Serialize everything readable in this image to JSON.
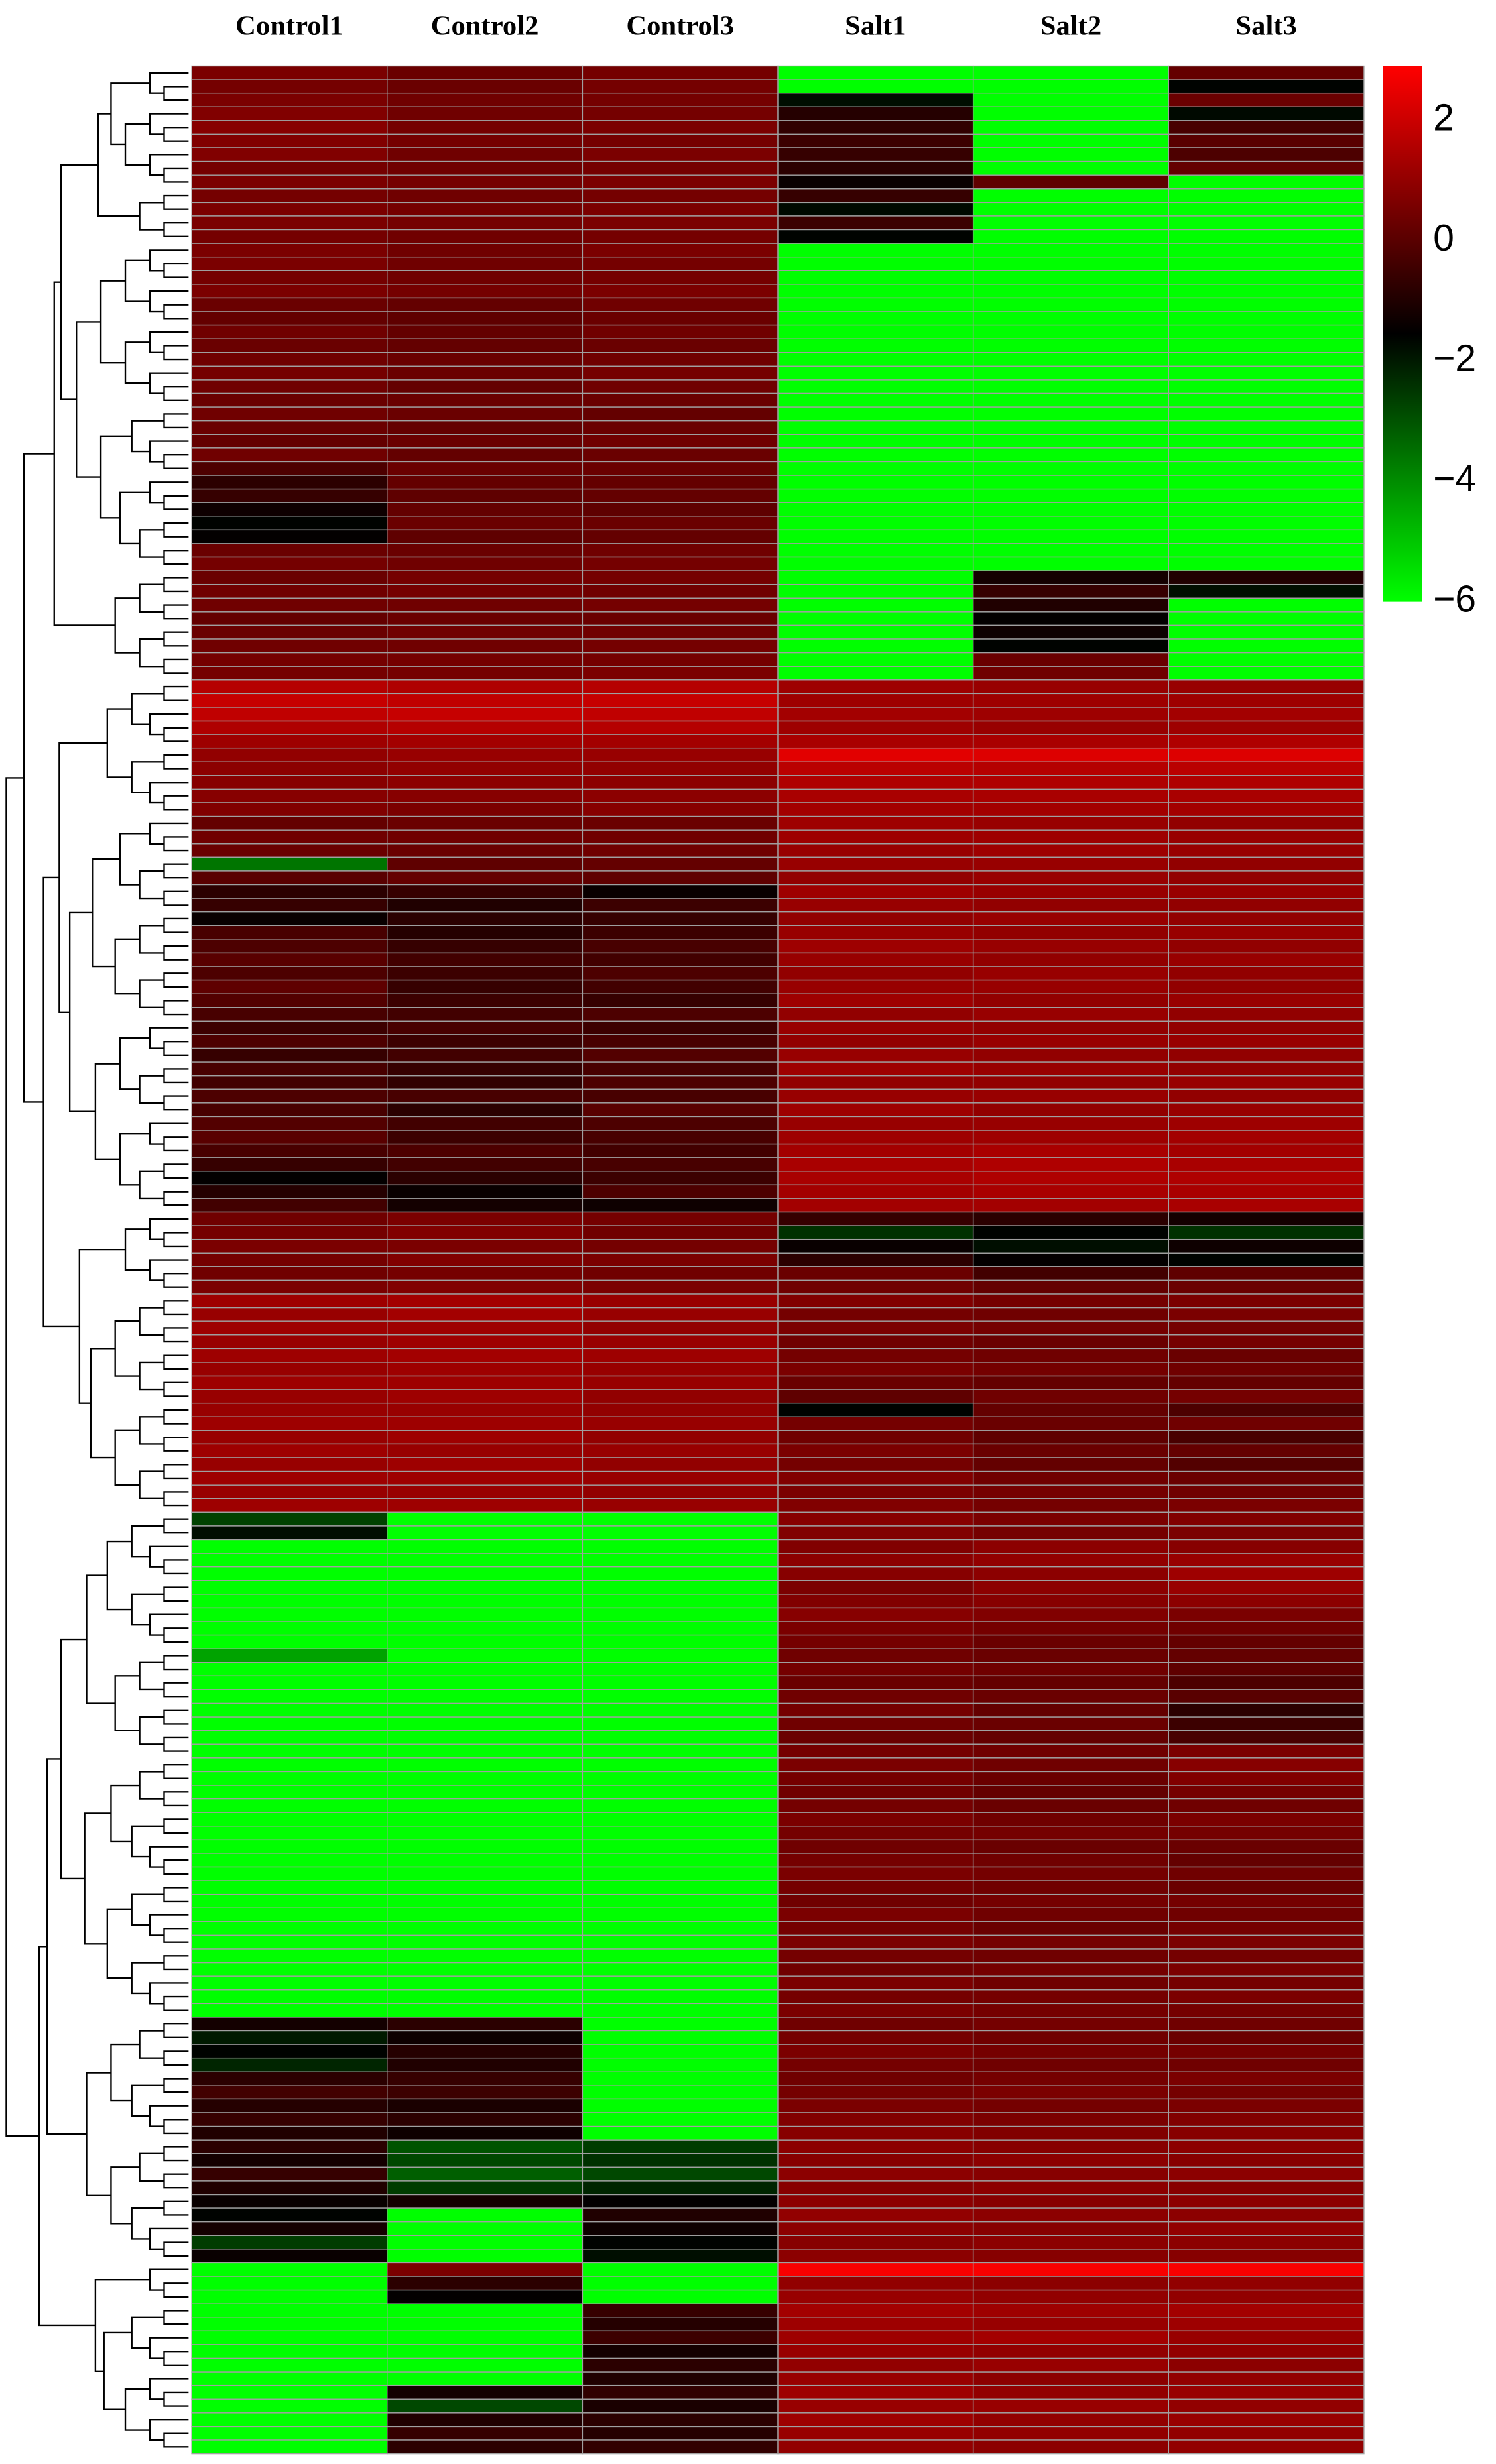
{
  "chart_data": {
    "type": "heatmap",
    "x": [
      "Control1",
      "Control2",
      "Control3",
      "Salt1",
      "Salt2",
      "Salt3"
    ],
    "clim": [
      -6,
      2.9
    ],
    "colors": [
      "#00ff00",
      "#000000",
      "#ff0000"
    ],
    "colorbar_ticks": [
      2,
      0,
      {
        "value": -2,
        "label": "−2"
      },
      {
        "value": -4,
        "label": "−4"
      },
      {
        "value": -6,
        "label": "−6"
      }
    ],
    "values": [
      [
        0.6,
        0.3,
        0.5,
        -6,
        -6,
        0.2
      ],
      [
        0.5,
        0.3,
        0.5,
        -6,
        -6,
        -1.6
      ],
      [
        0.6,
        0.4,
        0.5,
        -1.8,
        -6,
        0.3
      ],
      [
        0.7,
        0.4,
        0.5,
        -0.9,
        -6,
        -1.7
      ],
      [
        0.8,
        0.5,
        0.6,
        -0.7,
        -6,
        -0.3
      ],
      [
        0.7,
        0.5,
        0.5,
        -0.5,
        -6,
        0.0
      ],
      [
        0.7,
        0.4,
        0.6,
        -0.6,
        -6,
        -0.2
      ],
      [
        0.5,
        0.4,
        0.5,
        -0.8,
        -6,
        0.2
      ],
      [
        0.6,
        0.5,
        0.6,
        -1.4,
        0.1,
        -6
      ],
      [
        0.5,
        0.4,
        0.5,
        -0.6,
        -6,
        -6
      ],
      [
        0.6,
        0.5,
        0.6,
        -1.7,
        -6,
        -6
      ],
      [
        0.6,
        0.5,
        0.6,
        -0.5,
        -6,
        -6
      ],
      [
        0.5,
        0.4,
        0.5,
        -1.6,
        -6,
        -6
      ],
      [
        0.6,
        0.4,
        0.6,
        -6,
        -6,
        -6
      ],
      [
        0.6,
        0.4,
        0.5,
        -6,
        -6,
        -6
      ],
      [
        0.5,
        0.4,
        0.5,
        -6,
        -6,
        -6
      ],
      [
        0.6,
        0.5,
        0.6,
        -6,
        -6,
        -6
      ],
      [
        0.3,
        0.2,
        0.4,
        -6,
        -6,
        -6
      ],
      [
        0.2,
        0.1,
        0.3,
        -6,
        -6,
        -6
      ],
      [
        0.4,
        0.2,
        0.4,
        -6,
        -6,
        -6
      ],
      [
        0.3,
        0.2,
        0.3,
        -6,
        -6,
        -6
      ],
      [
        0.4,
        0.3,
        0.4,
        -6,
        -6,
        -6
      ],
      [
        0.5,
        0.3,
        0.5,
        -6,
        -6,
        -6
      ],
      [
        0.4,
        0.2,
        0.4,
        -6,
        -6,
        -6
      ],
      [
        0.3,
        0.3,
        0.3,
        -6,
        -6,
        -6
      ],
      [
        0.4,
        0.3,
        0.2,
        -6,
        -6,
        -6
      ],
      [
        0.3,
        0.2,
        0.3,
        -6,
        -6,
        -6
      ],
      [
        0.2,
        0.3,
        0.4,
        -6,
        -6,
        -6
      ],
      [
        0.4,
        0.2,
        0.3,
        -6,
        -6,
        -6
      ],
      [
        -0.2,
        0.3,
        0.3,
        -6,
        -6,
        -6
      ],
      [
        -0.8,
        0.2,
        0.2,
        -6,
        -6,
        -6
      ],
      [
        -0.6,
        0.1,
        0.2,
        -6,
        -6,
        -6
      ],
      [
        -1.3,
        0.2,
        0.1,
        -6,
        -6,
        -6
      ],
      [
        -1.6,
        0.3,
        0.3,
        -6,
        -6,
        -6
      ],
      [
        -1.5,
        0.1,
        0.2,
        -6,
        -6,
        -6
      ],
      [
        0.3,
        0.3,
        0.4,
        -6,
        -6,
        -6
      ],
      [
        0.5,
        0.4,
        0.5,
        -6,
        -6,
        -6
      ],
      [
        0.3,
        0.5,
        0.5,
        -6,
        -1.2,
        -1.0
      ],
      [
        0.4,
        0.5,
        0.4,
        -6,
        -0.6,
        -1.8
      ],
      [
        0.4,
        0.4,
        0.5,
        -6,
        -1.0,
        -6
      ],
      [
        0.2,
        0.3,
        0.3,
        -6,
        -1.5,
        -6
      ],
      [
        0.3,
        0.4,
        0.4,
        -6,
        -1.3,
        -6
      ],
      [
        0.4,
        0.4,
        0.5,
        -6,
        -1.6,
        -6
      ],
      [
        0.5,
        0.5,
        0.5,
        -6,
        0.3,
        -6
      ],
      [
        0.5,
        0.5,
        0.6,
        -6,
        0.4,
        -6
      ],
      [
        1.6,
        1.5,
        1.6,
        1.2,
        1.1,
        1.1
      ],
      [
        1.9,
        1.8,
        1.9,
        1.2,
        1.2,
        1.2
      ],
      [
        1.8,
        1.9,
        1.8,
        1.3,
        1.2,
        1.3
      ],
      [
        1.5,
        1.6,
        1.6,
        1.2,
        1.1,
        1.2
      ],
      [
        1.2,
        1.3,
        1.3,
        1.4,
        1.4,
        1.5
      ],
      [
        1.0,
        1.1,
        1.1,
        2.4,
        2.3,
        2.3
      ],
      [
        0.9,
        1.0,
        1.0,
        1.7,
        1.6,
        1.7
      ],
      [
        0.8,
        0.9,
        0.9,
        1.5,
        1.5,
        1.5
      ],
      [
        0.8,
        0.8,
        0.9,
        1.4,
        1.4,
        1.4
      ],
      [
        0.7,
        0.6,
        0.8,
        1.3,
        1.3,
        1.3
      ],
      [
        0.2,
        0.3,
        0.3,
        1.2,
        1.1,
        1.0
      ],
      [
        0.4,
        0.4,
        0.4,
        1.2,
        1.2,
        1.1
      ],
      [
        0.3,
        0.3,
        0.4,
        1.1,
        1.2,
        1.1
      ],
      [
        -3.6,
        0.1,
        0.2,
        1.1,
        1.1,
        1.0
      ],
      [
        0.0,
        0.2,
        0.1,
        1.0,
        1.1,
        1.0
      ],
      [
        -0.8,
        -0.6,
        -1.4,
        1.2,
        1.1,
        1.1
      ],
      [
        -0.6,
        -1.0,
        -0.5,
        1.1,
        1.0,
        1.0
      ],
      [
        -1.4,
        -0.8,
        -0.6,
        1.0,
        1.1,
        1.0
      ],
      [
        -0.3,
        -0.9,
        -0.5,
        1.1,
        1.0,
        1.1
      ],
      [
        -0.2,
        -0.6,
        -0.3,
        1.2,
        1.1,
        1.0
      ],
      [
        0.0,
        -0.4,
        -0.4,
        1.1,
        1.0,
        1.1
      ],
      [
        -0.2,
        -0.5,
        -0.2,
        1.0,
        1.1,
        1.0
      ],
      [
        0.1,
        -0.6,
        -0.4,
        1.1,
        1.1,
        1.0
      ],
      [
        -0.1,
        -0.5,
        -0.6,
        1.2,
        1.0,
        1.1
      ],
      [
        -0.3,
        -0.4,
        -0.2,
        1.0,
        1.1,
        1.0
      ],
      [
        -0.5,
        -0.3,
        -0.5,
        1.1,
        1.0,
        1.0
      ],
      [
        -0.2,
        -0.5,
        -0.3,
        1.0,
        1.1,
        1.1
      ],
      [
        -0.6,
        -0.4,
        -0.1,
        1.1,
        1.0,
        1.0
      ],
      [
        -0.3,
        -0.6,
        -0.3,
        1.2,
        1.1,
        1.0
      ],
      [
        -0.4,
        -0.7,
        -0.2,
        1.0,
        1.0,
        1.1
      ],
      [
        -0.2,
        -0.3,
        -0.3,
        1.1,
        1.1,
        1.0
      ],
      [
        -0.3,
        -0.8,
        0.0,
        1.2,
        1.0,
        1.1
      ],
      [
        -0.1,
        -0.4,
        -0.2,
        1.1,
        1.1,
        1.2
      ],
      [
        0.0,
        -0.5,
        -0.3,
        1.2,
        1.2,
        1.3
      ],
      [
        -0.3,
        -0.2,
        -0.4,
        1.3,
        1.4,
        1.3
      ],
      [
        -0.6,
        -0.4,
        -0.3,
        1.4,
        1.5,
        1.4
      ],
      [
        -1.5,
        -0.8,
        -0.5,
        1.4,
        1.5,
        1.5
      ],
      [
        -0.9,
        -1.4,
        -0.2,
        1.3,
        1.4,
        1.4
      ],
      [
        -0.4,
        -1.2,
        -1.3,
        1.3,
        1.3,
        1.4
      ],
      [
        0.4,
        0.6,
        0.5,
        -0.6,
        -0.8,
        -1.2
      ],
      [
        0.5,
        0.7,
        0.4,
        -2.4,
        -1.6,
        -2.4
      ],
      [
        0.6,
        0.6,
        0.5,
        -1.4,
        -1.8,
        -1.3
      ],
      [
        0.5,
        0.7,
        0.6,
        -0.8,
        -1.5,
        -1.6
      ],
      [
        0.4,
        0.5,
        0.4,
        0.3,
        -0.4,
        0.1
      ],
      [
        0.6,
        0.7,
        0.6,
        0.4,
        0.2,
        0.3
      ],
      [
        1.2,
        1.3,
        1.1,
        0.7,
        0.5,
        0.6
      ],
      [
        1.1,
        1.3,
        1.1,
        0.5,
        0.4,
        0.6
      ],
      [
        1.2,
        1.2,
        1.0,
        0.6,
        0.5,
        0.5
      ],
      [
        1.1,
        1.2,
        1.1,
        0.4,
        0.3,
        0.5
      ],
      [
        1.2,
        1.3,
        1.2,
        0.5,
        0.4,
        0.3
      ],
      [
        1.1,
        1.2,
        1.1,
        0.6,
        0.5,
        0.4
      ],
      [
        1.2,
        1.2,
        1.1,
        0.3,
        0.2,
        0.2
      ],
      [
        1.1,
        1.2,
        1.0,
        0.1,
        0.4,
        0.5
      ],
      [
        1.1,
        1.1,
        1.0,
        -1.6,
        0.2,
        -0.2
      ],
      [
        1.2,
        1.2,
        1.1,
        0.5,
        0.3,
        0.4
      ],
      [
        1.1,
        1.2,
        1.0,
        0.4,
        0.1,
        -0.3
      ],
      [
        1.2,
        1.1,
        1.1,
        0.6,
        0.3,
        0.2
      ],
      [
        1.1,
        1.2,
        1.0,
        0.5,
        0.2,
        -0.1
      ],
      [
        1.2,
        1.2,
        1.1,
        0.7,
        0.4,
        0.3
      ],
      [
        1.1,
        1.1,
        1.0,
        0.6,
        0.5,
        0.4
      ],
      [
        1.2,
        1.2,
        1.1,
        0.7,
        0.5,
        0.6
      ],
      [
        -2.7,
        -6,
        -6,
        0.8,
        0.6,
        0.7
      ],
      [
        -1.8,
        -6,
        -6,
        0.7,
        0.5,
        0.6
      ],
      [
        -6,
        -6,
        -6,
        0.7,
        0.9,
        0.8
      ],
      [
        -6,
        -6,
        -6,
        0.9,
        1.0,
        1.1
      ],
      [
        -6,
        -6,
        -6,
        0.8,
        0.9,
        1.2
      ],
      [
        -6,
        -6,
        -6,
        0.6,
        0.9,
        1.1
      ],
      [
        -6,
        -6,
        -6,
        0.7,
        0.8,
        0.9
      ],
      [
        -6,
        -6,
        -6,
        0.8,
        0.7,
        0.6
      ],
      [
        -6,
        -6,
        -6,
        0.6,
        0.5,
        0.4
      ],
      [
        -6,
        -6,
        -6,
        0.5,
        0.3,
        0.2
      ],
      [
        -4.4,
        -6,
        -6,
        0.4,
        0.3,
        0.2
      ],
      [
        -6,
        -6,
        -6,
        0.5,
        0.4,
        0.1
      ],
      [
        -6,
        -6,
        -6,
        0.3,
        0.2,
        -0.2
      ],
      [
        -6,
        -6,
        -6,
        0.4,
        0.3,
        0.0
      ],
      [
        -6,
        -6,
        -6,
        0.5,
        0.2,
        -0.8
      ],
      [
        -6,
        -6,
        -6,
        0.4,
        0.3,
        -0.5
      ],
      [
        -6,
        -6,
        -6,
        0.3,
        0.2,
        -0.3
      ],
      [
        -6,
        -6,
        -6,
        0.5,
        0.4,
        0.6
      ],
      [
        -6,
        -6,
        -6,
        0.6,
        0.4,
        0.8
      ],
      [
        -6,
        -6,
        -6,
        0.5,
        0.3,
        0.7
      ],
      [
        -6,
        -6,
        -6,
        0.4,
        0.2,
        0.5
      ],
      [
        -6,
        -6,
        -6,
        0.5,
        0.3,
        0.4
      ],
      [
        -6,
        -6,
        -6,
        0.6,
        0.4,
        0.6
      ],
      [
        -6,
        -6,
        -6,
        0.5,
        0.5,
        0.5
      ],
      [
        -6,
        -6,
        -6,
        0.4,
        0.3,
        0.3
      ],
      [
        -6,
        -6,
        -6,
        0.5,
        0.4,
        0.2
      ],
      [
        -6,
        -6,
        -6,
        0.6,
        0.5,
        0.4
      ],
      [
        -6,
        -6,
        -6,
        0.5,
        0.4,
        0.3
      ],
      [
        -6,
        -6,
        -6,
        0.4,
        0.5,
        0.5
      ],
      [
        -6,
        -6,
        -6,
        0.6,
        0.4,
        0.4
      ],
      [
        -6,
        -6,
        -6,
        0.5,
        0.3,
        0.5
      ],
      [
        -6,
        -6,
        -6,
        0.6,
        0.5,
        0.6
      ],
      [
        -6,
        -6,
        -6,
        0.5,
        0.4,
        0.5
      ],
      [
        -6,
        -6,
        -6,
        0.4,
        0.5,
        0.6
      ],
      [
        -6,
        -6,
        -6,
        0.6,
        0.4,
        0.5
      ],
      [
        -6,
        -6,
        -6,
        0.5,
        0.5,
        0.6
      ],
      [
        -6,
        -6,
        -6,
        0.6,
        0.5,
        0.5
      ],
      [
        -1.2,
        -0.8,
        -6,
        0.4,
        0.5,
        0.4
      ],
      [
        -2.0,
        -1.3,
        -6,
        0.5,
        0.4,
        0.3
      ],
      [
        -1.6,
        -0.9,
        -6,
        0.6,
        0.5,
        0.5
      ],
      [
        -2.2,
        -1.0,
        -6,
        0.5,
        0.4,
        0.4
      ],
      [
        -0.8,
        -0.6,
        -6,
        0.4,
        0.5,
        0.6
      ],
      [
        -0.4,
        -0.5,
        -6,
        0.5,
        0.6,
        0.5
      ],
      [
        -0.9,
        -1.1,
        -6,
        0.6,
        0.5,
        0.6
      ],
      [
        -0.6,
        -0.8,
        -6,
        0.7,
        0.6,
        0.7
      ],
      [
        -1.0,
        -1.3,
        -6,
        0.8,
        0.7,
        0.8
      ],
      [
        -0.8,
        -3.0,
        -2.6,
        0.9,
        0.8,
        0.9
      ],
      [
        -1.2,
        -2.8,
        -2.4,
        0.8,
        0.9,
        0.8
      ],
      [
        -0.6,
        -3.2,
        -2.8,
        0.9,
        0.8,
        0.9
      ],
      [
        -1.0,
        -2.6,
        -2.2,
        0.8,
        0.9,
        0.8
      ],
      [
        -1.4,
        -1.2,
        -1.5,
        0.9,
        0.8,
        0.9
      ],
      [
        -1.6,
        -6,
        -1.0,
        1.0,
        0.9,
        0.9
      ],
      [
        -1.2,
        -6,
        -1.3,
        0.9,
        0.8,
        1.0
      ],
      [
        -2.6,
        -6,
        -1.6,
        0.8,
        0.9,
        0.9
      ],
      [
        -1.4,
        -6,
        -1.8,
        0.9,
        0.8,
        0.8
      ],
      [
        -6,
        0.6,
        -6,
        2.8,
        2.8,
        2.8
      ],
      [
        -6,
        -0.8,
        -6,
        1.0,
        0.9,
        1.0
      ],
      [
        -6,
        -1.5,
        -6,
        1.1,
        1.0,
        1.0
      ],
      [
        -6,
        -6,
        -0.6,
        1.3,
        1.2,
        1.3
      ],
      [
        -6,
        -6,
        -0.9,
        1.2,
        1.1,
        1.2
      ],
      [
        -6,
        -6,
        -0.5,
        1.2,
        1.3,
        1.1
      ],
      [
        -6,
        -6,
        -1.2,
        1.1,
        1.0,
        1.0
      ],
      [
        -6,
        -6,
        -0.8,
        1.0,
        1.1,
        0.9
      ],
      [
        -6,
        -6,
        -1.0,
        1.1,
        0.9,
        1.0
      ],
      [
        -6,
        -1.2,
        -0.7,
        1.2,
        1.0,
        1.1
      ],
      [
        -6,
        -2.8,
        -1.1,
        1.1,
        1.1,
        1.0
      ],
      [
        -6,
        -1.0,
        -0.8,
        1.2,
        1.0,
        1.1
      ],
      [
        -6,
        -0.6,
        -0.9,
        1.1,
        1.0,
        1.0
      ],
      [
        -6,
        -0.8,
        -0.7,
        1.0,
        0.9,
        1.0
      ]
    ]
  }
}
